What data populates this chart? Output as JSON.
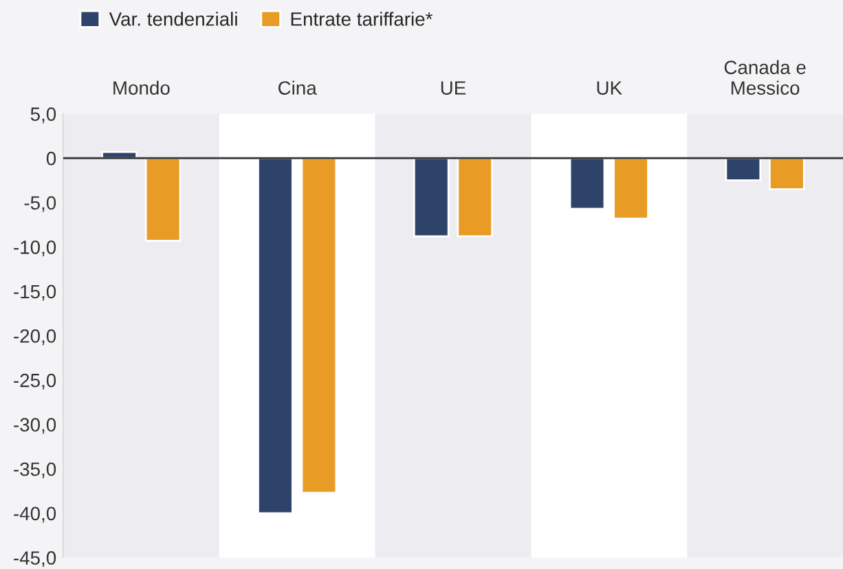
{
  "chart_data": {
    "type": "bar",
    "categories": [
      "Mondo",
      "Cina",
      "UE",
      "UK",
      "Canada e\nMessico"
    ],
    "series": [
      {
        "name": "Var. tendenziali",
        "color": "#2e4369",
        "values": [
          0.7,
          -40.0,
          -8.8,
          -5.7,
          -2.5
        ]
      },
      {
        "name": "Entrate tariffarie*",
        "color": "#e89c25",
        "values": [
          -9.3,
          -37.7,
          -8.8,
          -6.8,
          -3.5
        ]
      }
    ],
    "ylim": [
      -45,
      5
    ],
    "yticks": [
      {
        "value": 5,
        "label": "5,0"
      },
      {
        "value": 0,
        "label": "0"
      },
      {
        "value": -5,
        "label": "-5,0"
      },
      {
        "value": -10,
        "label": "-10,0"
      },
      {
        "value": -15,
        "label": "-15,0"
      },
      {
        "value": -20,
        "label": "-20,0"
      },
      {
        "value": -25,
        "label": "-25,0"
      },
      {
        "value": -30,
        "label": "-30,0"
      },
      {
        "value": -35,
        "label": "-35,0"
      },
      {
        "value": -40,
        "label": "-40,0"
      },
      {
        "value": -45,
        "label": "-45,0"
      }
    ],
    "ref_lines": [
      {
        "axis": "y",
        "value": 0,
        "color": "#333333"
      }
    ],
    "grid": false,
    "legend": "top left"
  }
}
